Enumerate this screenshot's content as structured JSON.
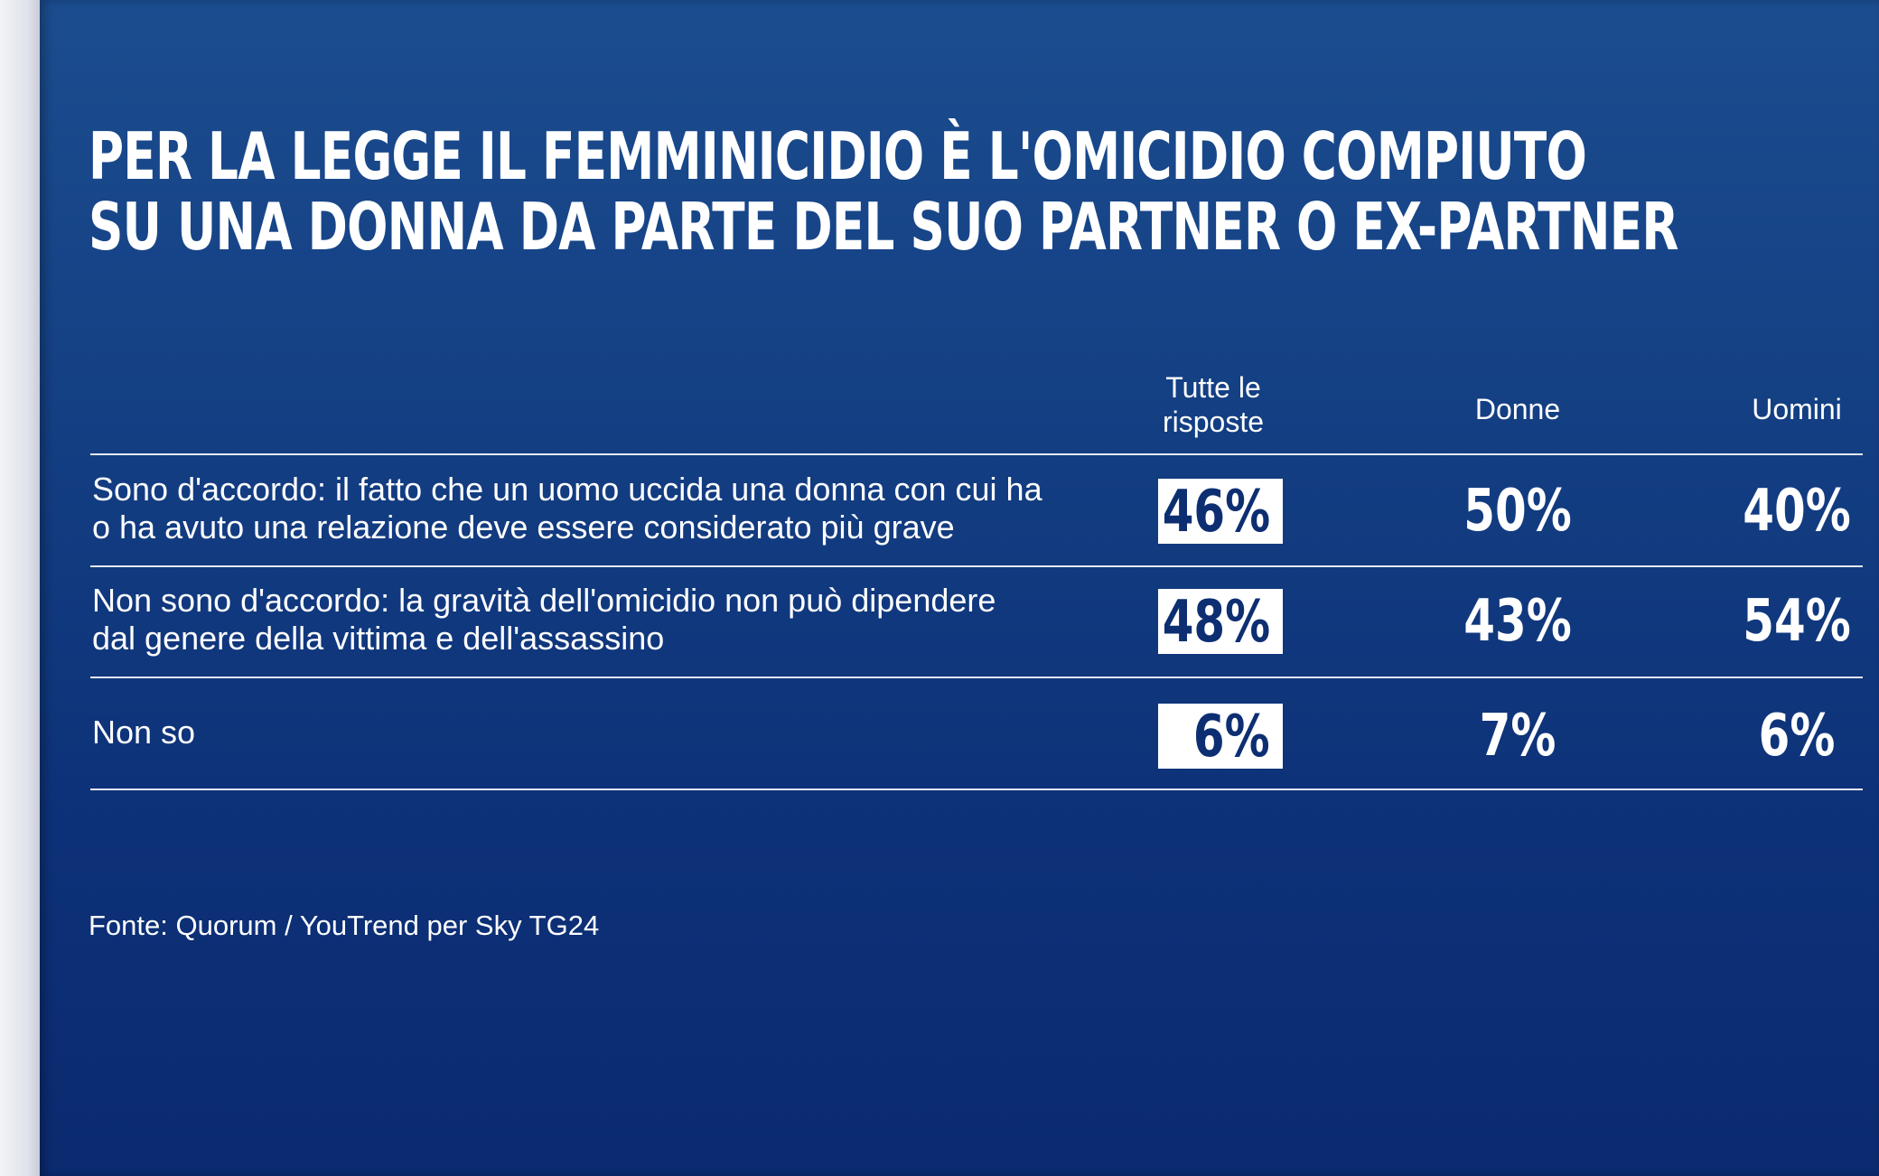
{
  "chart_data": {
    "type": "table",
    "title": "PER LA LEGGE IL FEMMINICIDIO È L'OMICIDIO COMPIUTO SU UNA DONNA DA PARTE DEL SUO PARTNER O EX-PARTNER",
    "title_lines": [
      "PER LA LEGGE IL FEMMINICIDIO È L'OMICIDIO COMPIUTO",
      "SU UNA DONNA DA PARTE DEL SUO PARTNER O EX-PARTNER"
    ],
    "columns": [
      {
        "key": "all",
        "label_lines": [
          "Tutte le",
          "risposte"
        ]
      },
      {
        "key": "donne",
        "label_lines": [
          "Donne"
        ]
      },
      {
        "key": "uomini",
        "label_lines": [
          "Uomini"
        ]
      }
    ],
    "rows": [
      {
        "label_lines": [
          "Sono d'accordo: il fatto che un uomo uccida una donna con cui ha",
          "o ha avuto una relazione deve essere considerato più grave"
        ],
        "values": [
          "46%",
          "50%",
          "40%"
        ]
      },
      {
        "label_lines": [
          "Non sono d'accordo: la gravità dell'omicidio non può dipendere",
          "dal genere della vittima e dell'assassino"
        ],
        "values": [
          "48%",
          "43%",
          "54%"
        ]
      },
      {
        "label_lines": [
          "Non so"
        ],
        "values": [
          "6%",
          "7%",
          "6%"
        ]
      }
    ],
    "source": "Fonte: Quorum / YouTrend per Sky TG24"
  },
  "colors": {
    "background": "#143f83",
    "text": "#ffffff",
    "highlight_box": "#ffffff",
    "highlight_text": "#0d2f72"
  }
}
